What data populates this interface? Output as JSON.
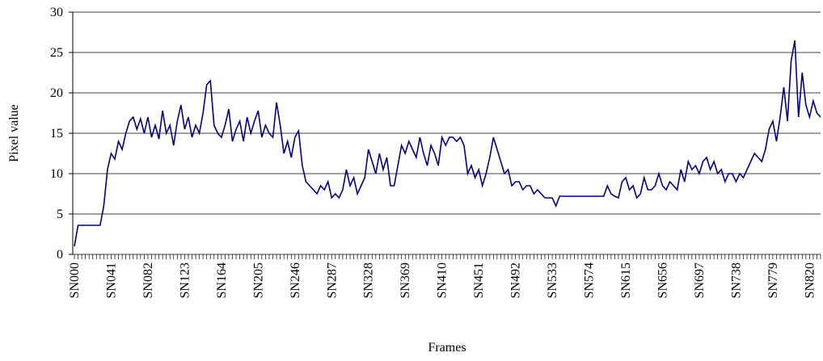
{
  "chart_data": {
    "type": "line",
    "x_label": "Frames",
    "y_label": "Pixel value",
    "categories": [
      "SN000",
      null,
      null,
      null,
      null,
      null,
      null,
      null,
      null,
      null,
      "SN041",
      null,
      null,
      null,
      null,
      null,
      null,
      null,
      null,
      null,
      "SN082",
      null,
      null,
      null,
      null,
      null,
      null,
      null,
      null,
      null,
      "SN123",
      null,
      null,
      null,
      null,
      null,
      null,
      null,
      null,
      null,
      "SN164",
      null,
      null,
      null,
      null,
      null,
      null,
      null,
      null,
      null,
      "SN205",
      null,
      null,
      null,
      null,
      null,
      null,
      null,
      null,
      null,
      "SN246",
      null,
      null,
      null,
      null,
      null,
      null,
      null,
      null,
      null,
      "SN287",
      null,
      null,
      null,
      null,
      null,
      null,
      null,
      null,
      null,
      "SN328",
      null,
      null,
      null,
      null,
      null,
      null,
      null,
      null,
      null,
      "SN369",
      null,
      null,
      null,
      null,
      null,
      null,
      null,
      null,
      null,
      "SN410",
      null,
      null,
      null,
      null,
      null,
      null,
      null,
      null,
      null,
      "SN451",
      null,
      null,
      null,
      null,
      null,
      null,
      null,
      null,
      null,
      "SN492",
      null,
      null,
      null,
      null,
      null,
      null,
      null,
      null,
      null,
      "SN533",
      null,
      null,
      null,
      null,
      null,
      null,
      null,
      null,
      null,
      "SN574",
      null,
      null,
      null,
      null,
      null,
      null,
      null,
      null,
      null,
      "SN615",
      null,
      null,
      null,
      null,
      null,
      null,
      null,
      null,
      null,
      "SN656",
      null,
      null,
      null,
      null,
      null,
      null,
      null,
      null,
      null,
      "SN697",
      null,
      null,
      null,
      null,
      null,
      null,
      null,
      null,
      null,
      "SN738",
      null,
      null,
      null,
      null,
      null,
      null,
      null,
      null,
      null,
      "SN779",
      null,
      null,
      null,
      null,
      null,
      null,
      null,
      null,
      null,
      "SN820",
      null,
      null,
      null
    ],
    "series": [
      {
        "name": "Pixel value",
        "color": "#000080",
        "values": [
          1,
          3.6,
          3.6,
          3.6,
          3.6,
          3.6,
          3.6,
          3.6,
          6,
          10.5,
          12.5,
          11.8,
          14,
          13,
          15,
          16.5,
          17,
          15.5,
          16.8,
          15,
          17,
          14.5,
          16,
          14.3,
          17.8,
          15,
          16,
          13.5,
          16.5,
          18.5,
          15.5,
          17,
          14.5,
          16,
          15,
          17.5,
          21,
          21.5,
          16,
          15,
          14.5,
          16,
          18,
          14,
          15.5,
          16.5,
          14,
          17,
          15,
          16.5,
          17.8,
          14.5,
          16,
          15,
          14.5,
          18.8,
          16,
          12.5,
          14,
          12,
          14.5,
          15.3,
          11,
          9,
          8.5,
          8,
          7.5,
          8.5,
          8,
          9,
          7,
          7.5,
          7,
          8,
          10.5,
          8.5,
          9.5,
          7.5,
          8.5,
          9.5,
          13,
          11.5,
          10,
          12.5,
          10.5,
          12,
          8.5,
          8.5,
          11,
          13.5,
          12.5,
          14,
          13,
          12,
          14.5,
          12.5,
          11,
          13.5,
          12.5,
          11,
          14.5,
          13.5,
          14.5,
          14.5,
          14,
          14.5,
          13.5,
          10,
          11,
          9.5,
          10.5,
          8.5,
          10,
          12,
          14.5,
          13,
          11.5,
          10,
          10.5,
          8.5,
          9,
          9,
          8,
          8.5,
          8.5,
          7.5,
          8,
          7.5,
          7,
          7,
          7,
          6,
          7.2,
          7.2,
          7.2,
          7.2,
          7.2,
          7.2,
          7.2,
          7.2,
          7.2,
          7.2,
          7.2,
          7.2,
          7.2,
          8.5,
          7.5,
          7.2,
          7,
          9,
          9.5,
          8,
          8.5,
          7,
          7.5,
          9.5,
          8,
          8,
          8.5,
          10,
          8.5,
          8,
          9,
          8.5,
          8,
          10.5,
          9,
          11.5,
          10.5,
          11,
          10,
          11.5,
          12,
          10.5,
          11.5,
          10,
          10.5,
          9,
          10,
          10,
          9,
          10,
          9.5,
          10.5,
          11.5,
          12.5,
          12,
          11.5,
          13,
          15.5,
          16.5,
          14,
          17,
          20.7,
          16.5,
          24,
          26.5,
          17,
          22.5,
          18.5,
          17,
          19,
          17.5,
          17
        ]
      }
    ],
    "ylim": [
      0,
      30
    ],
    "yticks": [
      0,
      5,
      10,
      15,
      20,
      25,
      30
    ],
    "grid": true
  }
}
